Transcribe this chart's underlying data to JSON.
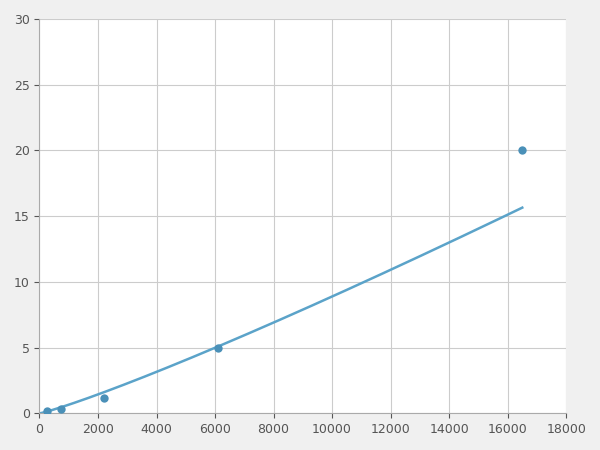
{
  "x_points": [
    250,
    750,
    2200,
    6100,
    16500
  ],
  "y_points": [
    0.2,
    0.35,
    1.2,
    5.0,
    20.0
  ],
  "line_color": "#5ba3c9",
  "marker_color": "#4a90b8",
  "marker_size": 6,
  "line_width": 1.8,
  "xlim": [
    0,
    18000
  ],
  "ylim": [
    0,
    30
  ],
  "xticks": [
    0,
    2000,
    4000,
    6000,
    8000,
    10000,
    12000,
    14000,
    16000,
    18000
  ],
  "yticks": [
    0,
    5,
    10,
    15,
    20,
    25,
    30
  ],
  "grid_color": "#cccccc",
  "background_color": "#ffffff",
  "figure_bg": "#f0f0f0"
}
